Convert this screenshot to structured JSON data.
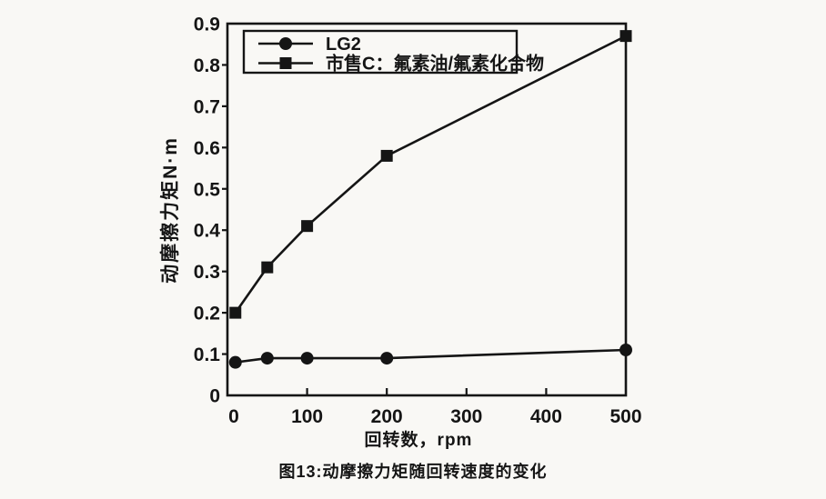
{
  "page": {
    "background": "#f9f8f5",
    "ink_color": "#151515"
  },
  "caption": "图13:动摩擦力矩随回转速度的变化",
  "chart_data": {
    "type": "line",
    "title": "",
    "xlabel": "回转数，rpm",
    "ylabel": "动摩擦力矩N·m",
    "xlim": [
      0,
      500
    ],
    "ylim": [
      0,
      0.9
    ],
    "x_ticks": [
      0,
      100,
      200,
      300,
      400,
      500
    ],
    "x_tick_labels": [
      "0",
      "100",
      "200",
      "300",
      "400",
      "500"
    ],
    "y_ticks": [
      0,
      0.1,
      0.2,
      0.3,
      0.4,
      0.5,
      0.6,
      0.7,
      0.8,
      0.9
    ],
    "y_tick_labels": [
      "0",
      "0.1",
      "0.2",
      "0.3",
      "0.4",
      "0.5",
      "0.6",
      "0.7",
      "0.8",
      "0.9"
    ],
    "grid": false,
    "legend_position": "top-left-inside",
    "series": [
      {
        "name": "LG2",
        "marker": "circle",
        "color": "#151515",
        "x": [
          10,
          50,
          100,
          200,
          500
        ],
        "values": [
          0.08,
          0.09,
          0.09,
          0.09,
          0.11
        ]
      },
      {
        "name": "市售C：氟素油/氟素化合物",
        "marker": "square",
        "color": "#151515",
        "x": [
          10,
          50,
          100,
          200,
          500
        ],
        "values": [
          0.2,
          0.31,
          0.41,
          0.58,
          0.87
        ]
      }
    ]
  }
}
